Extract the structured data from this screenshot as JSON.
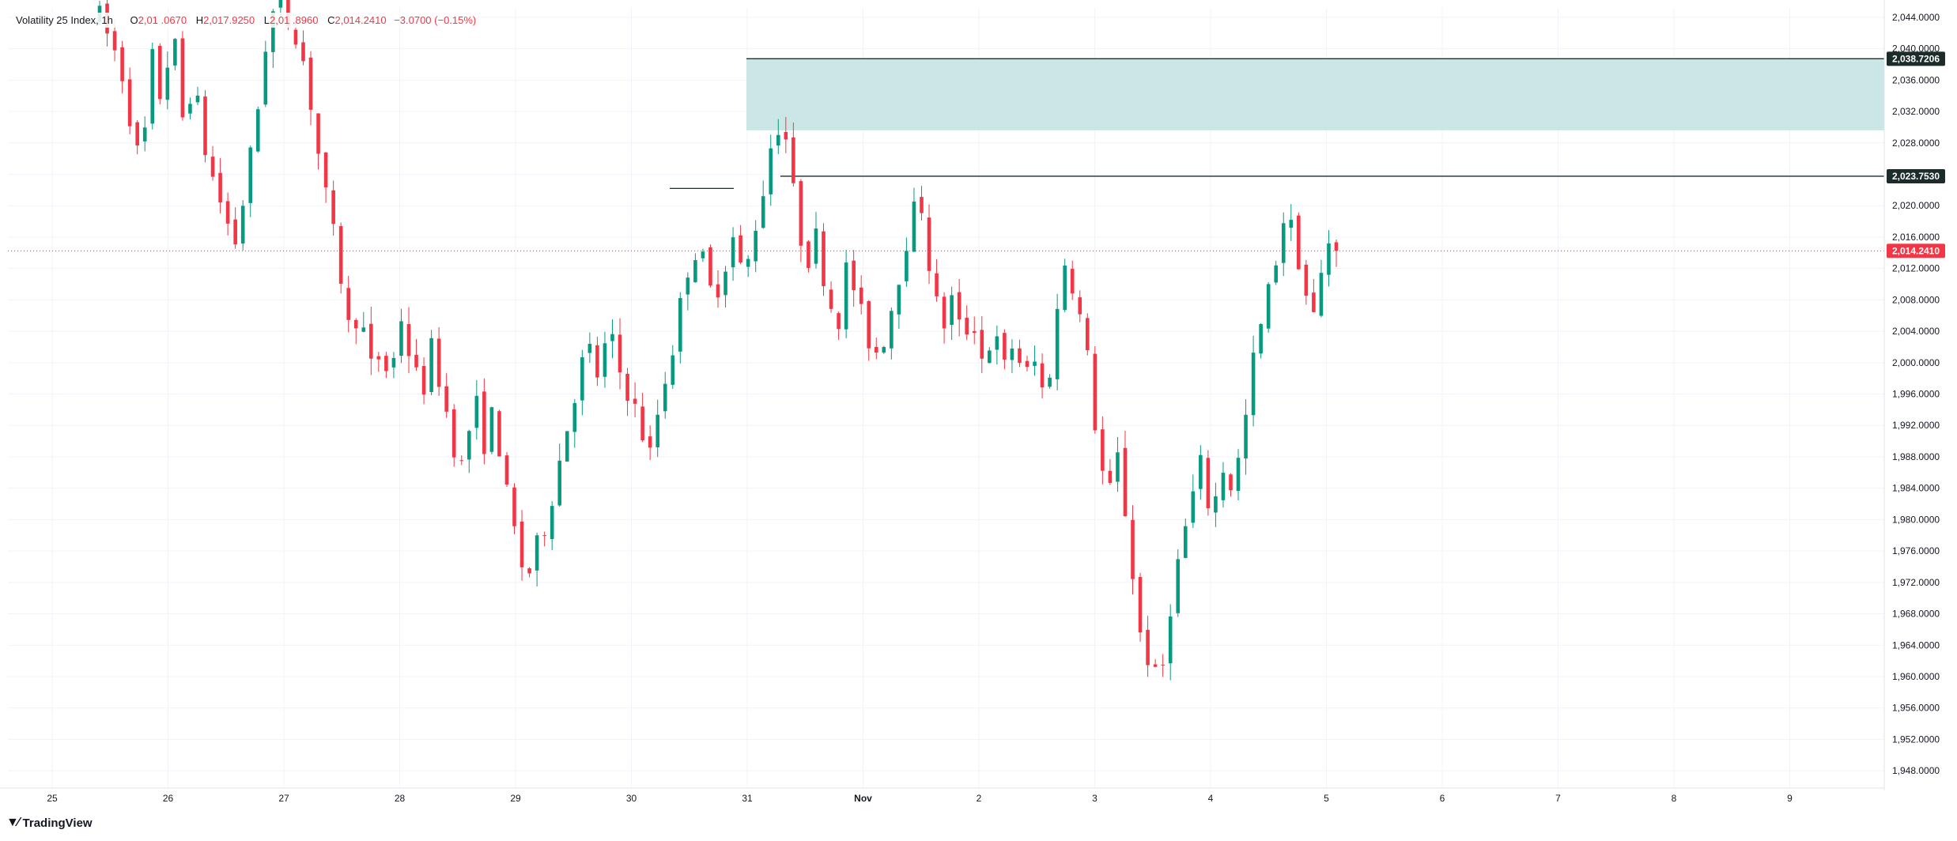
{
  "legend": {
    "symbol": "Volatility 25 Index, 1h",
    "o_label": "O",
    "o_value": "2,01 .0670",
    "h_label": "H",
    "h_value": "2,017.9250",
    "l_label": "L",
    "l_value": "2,01 .8960",
    "c_label": "C",
    "c_value": "2,014.2410",
    "change": "−3.0700 (−0.15%)"
  },
  "brand": {
    "name": "TradingView",
    "icon": "tradingview-logo-icon"
  },
  "colors": {
    "up": "#089981",
    "down": "#f23645",
    "zone": "#c8e6e4",
    "line": "#1b2c2a",
    "grid": "#f0f3fa",
    "axis_text": "#131722",
    "price_line": "#f23645"
  },
  "chart_data": {
    "type": "candlestick",
    "title": "Volatility 25 Index",
    "interval": "1h",
    "ylim": [
      1945.5,
      2046.5
    ],
    "grid": true,
    "x_tick_labels": [
      "25",
      "26",
      "27",
      "28",
      "29",
      "30",
      "31",
      "Nov",
      "2",
      "3",
      "4",
      "5",
      "6",
      "7",
      "8",
      "9"
    ],
    "y_tick_values": [
      1948,
      1952,
      1956,
      1960,
      1964,
      1968,
      1972,
      1976,
      1980,
      1984,
      1988,
      1992,
      1996,
      2000,
      2004,
      2008,
      2012,
      2016,
      2020,
      2024,
      2028,
      2032,
      2036,
      2040,
      2044
    ],
    "y_tick_labels": [
      "1,948.0000",
      "1,952.0000",
      "1,956.0000",
      "1,960.0000",
      "1,964.0000",
      "1,968.0000",
      "1,972.0000",
      "1,976.0000",
      "1,980.0000",
      "1,984.0000",
      "1,988.0000",
      "1,992.0000",
      "1,996.0000",
      "2,000.0000",
      "2,004.0000",
      "2,008.0000",
      "2,012.0000",
      "2,016.0000",
      "2,020.0000",
      "2,024.0000",
      "2,028.0000",
      "2,032.0000",
      "2,036.0000",
      "2,040.0000",
      "2,044.0000"
    ],
    "price_path": [
      [
        0,
        2044
      ],
      [
        2,
        2038
      ],
      [
        3,
        2031
      ],
      [
        4,
        2024
      ],
      [
        5,
        2039
      ],
      [
        6,
        2033
      ],
      [
        7,
        2043
      ],
      [
        8,
        2031
      ],
      [
        9,
        2036
      ],
      [
        10,
        2028
      ],
      [
        11,
        2023
      ],
      [
        12,
        2019
      ],
      [
        13,
        2015
      ],
      [
        14,
        2022
      ],
      [
        15,
        2030
      ],
      [
        16,
        2041
      ],
      [
        17,
        2046
      ],
      [
        18,
        2044
      ],
      [
        19,
        2042
      ],
      [
        20,
        2036
      ],
      [
        21,
        2027
      ],
      [
        22,
        2019
      ],
      [
        23,
        2013
      ],
      [
        24,
        2004
      ],
      [
        25,
        2007
      ],
      [
        26,
        1999
      ],
      [
        27,
        2001
      ],
      [
        28,
        1998
      ],
      [
        29,
        2006
      ],
      [
        30,
        2000
      ],
      [
        31,
        1996
      ],
      [
        32,
        2002
      ],
      [
        33,
        1996
      ],
      [
        34,
        1990
      ],
      [
        35,
        1986
      ],
      [
        36,
        1996
      ],
      [
        37,
        1990
      ],
      [
        38,
        1994
      ],
      [
        39,
        1984
      ],
      [
        40,
        1978
      ],
      [
        41,
        1972
      ],
      [
        42,
        1976
      ],
      [
        43,
        1980
      ],
      [
        44,
        1986
      ],
      [
        45,
        1992
      ],
      [
        46,
        1998
      ],
      [
        47,
        2002
      ],
      [
        48,
        1998
      ],
      [
        49,
        2004
      ],
      [
        50,
        1999
      ],
      [
        51,
        1996
      ],
      [
        52,
        1992
      ],
      [
        53,
        1988
      ],
      [
        54,
        1996
      ],
      [
        55,
        2001
      ],
      [
        56,
        2008
      ],
      [
        57,
        2015
      ],
      [
        58,
        2013
      ],
      [
        59,
        2008
      ],
      [
        60,
        2012
      ],
      [
        61,
        2016
      ],
      [
        62,
        2010
      ],
      [
        63,
        2017
      ],
      [
        64,
        2023
      ],
      [
        65,
        2031
      ],
      [
        66,
        2029
      ],
      [
        67,
        2019
      ],
      [
        68,
        2013
      ],
      [
        69,
        2016
      ],
      [
        70,
        2009
      ],
      [
        71,
        2005
      ],
      [
        72,
        2013
      ],
      [
        73,
        2007
      ],
      [
        74,
        2003
      ],
      [
        75,
        2001
      ],
      [
        76,
        2006
      ],
      [
        77,
        2012
      ],
      [
        78,
        2018
      ],
      [
        79,
        2021
      ],
      [
        80,
        2011
      ],
      [
        81,
        2004
      ],
      [
        82,
        2008
      ],
      [
        83,
        2003
      ],
      [
        84,
        2006
      ],
      [
        85,
        2000
      ],
      [
        86,
        2004
      ],
      [
        87,
        1999
      ],
      [
        88,
        2003
      ],
      [
        89,
        1998
      ],
      [
        90,
        2000
      ],
      [
        91,
        1995
      ],
      [
        92,
        2005
      ],
      [
        93,
        2014
      ],
      [
        94,
        2008
      ],
      [
        95,
        2001
      ],
      [
        96,
        1990
      ],
      [
        97,
        1982
      ],
      [
        98,
        1988
      ],
      [
        99,
        1978
      ],
      [
        100,
        1966
      ],
      [
        101,
        1962
      ],
      [
        102,
        1958
      ],
      [
        103,
        1969
      ],
      [
        104,
        1976
      ],
      [
        105,
        1982
      ],
      [
        106,
        1987
      ],
      [
        107,
        1980
      ],
      [
        108,
        1987
      ],
      [
        109,
        1984
      ],
      [
        110,
        1990
      ],
      [
        111,
        2000
      ],
      [
        112,
        2006
      ],
      [
        113,
        2012
      ],
      [
        114,
        2019
      ],
      [
        115,
        2016
      ],
      [
        116,
        2009
      ],
      [
        117,
        2005
      ],
      [
        118,
        2016
      ],
      [
        119,
        2014.241
      ]
    ],
    "last_price": 2014.241,
    "last_price_label": "2,014.2410",
    "supply_zone": {
      "low": 2029.6,
      "high": 2038.7206,
      "label": "2,038.7206"
    },
    "resistance_line": {
      "value": 2023.753,
      "label": "2,023.7530"
    },
    "small_line": {
      "value": 2022.2
    }
  }
}
